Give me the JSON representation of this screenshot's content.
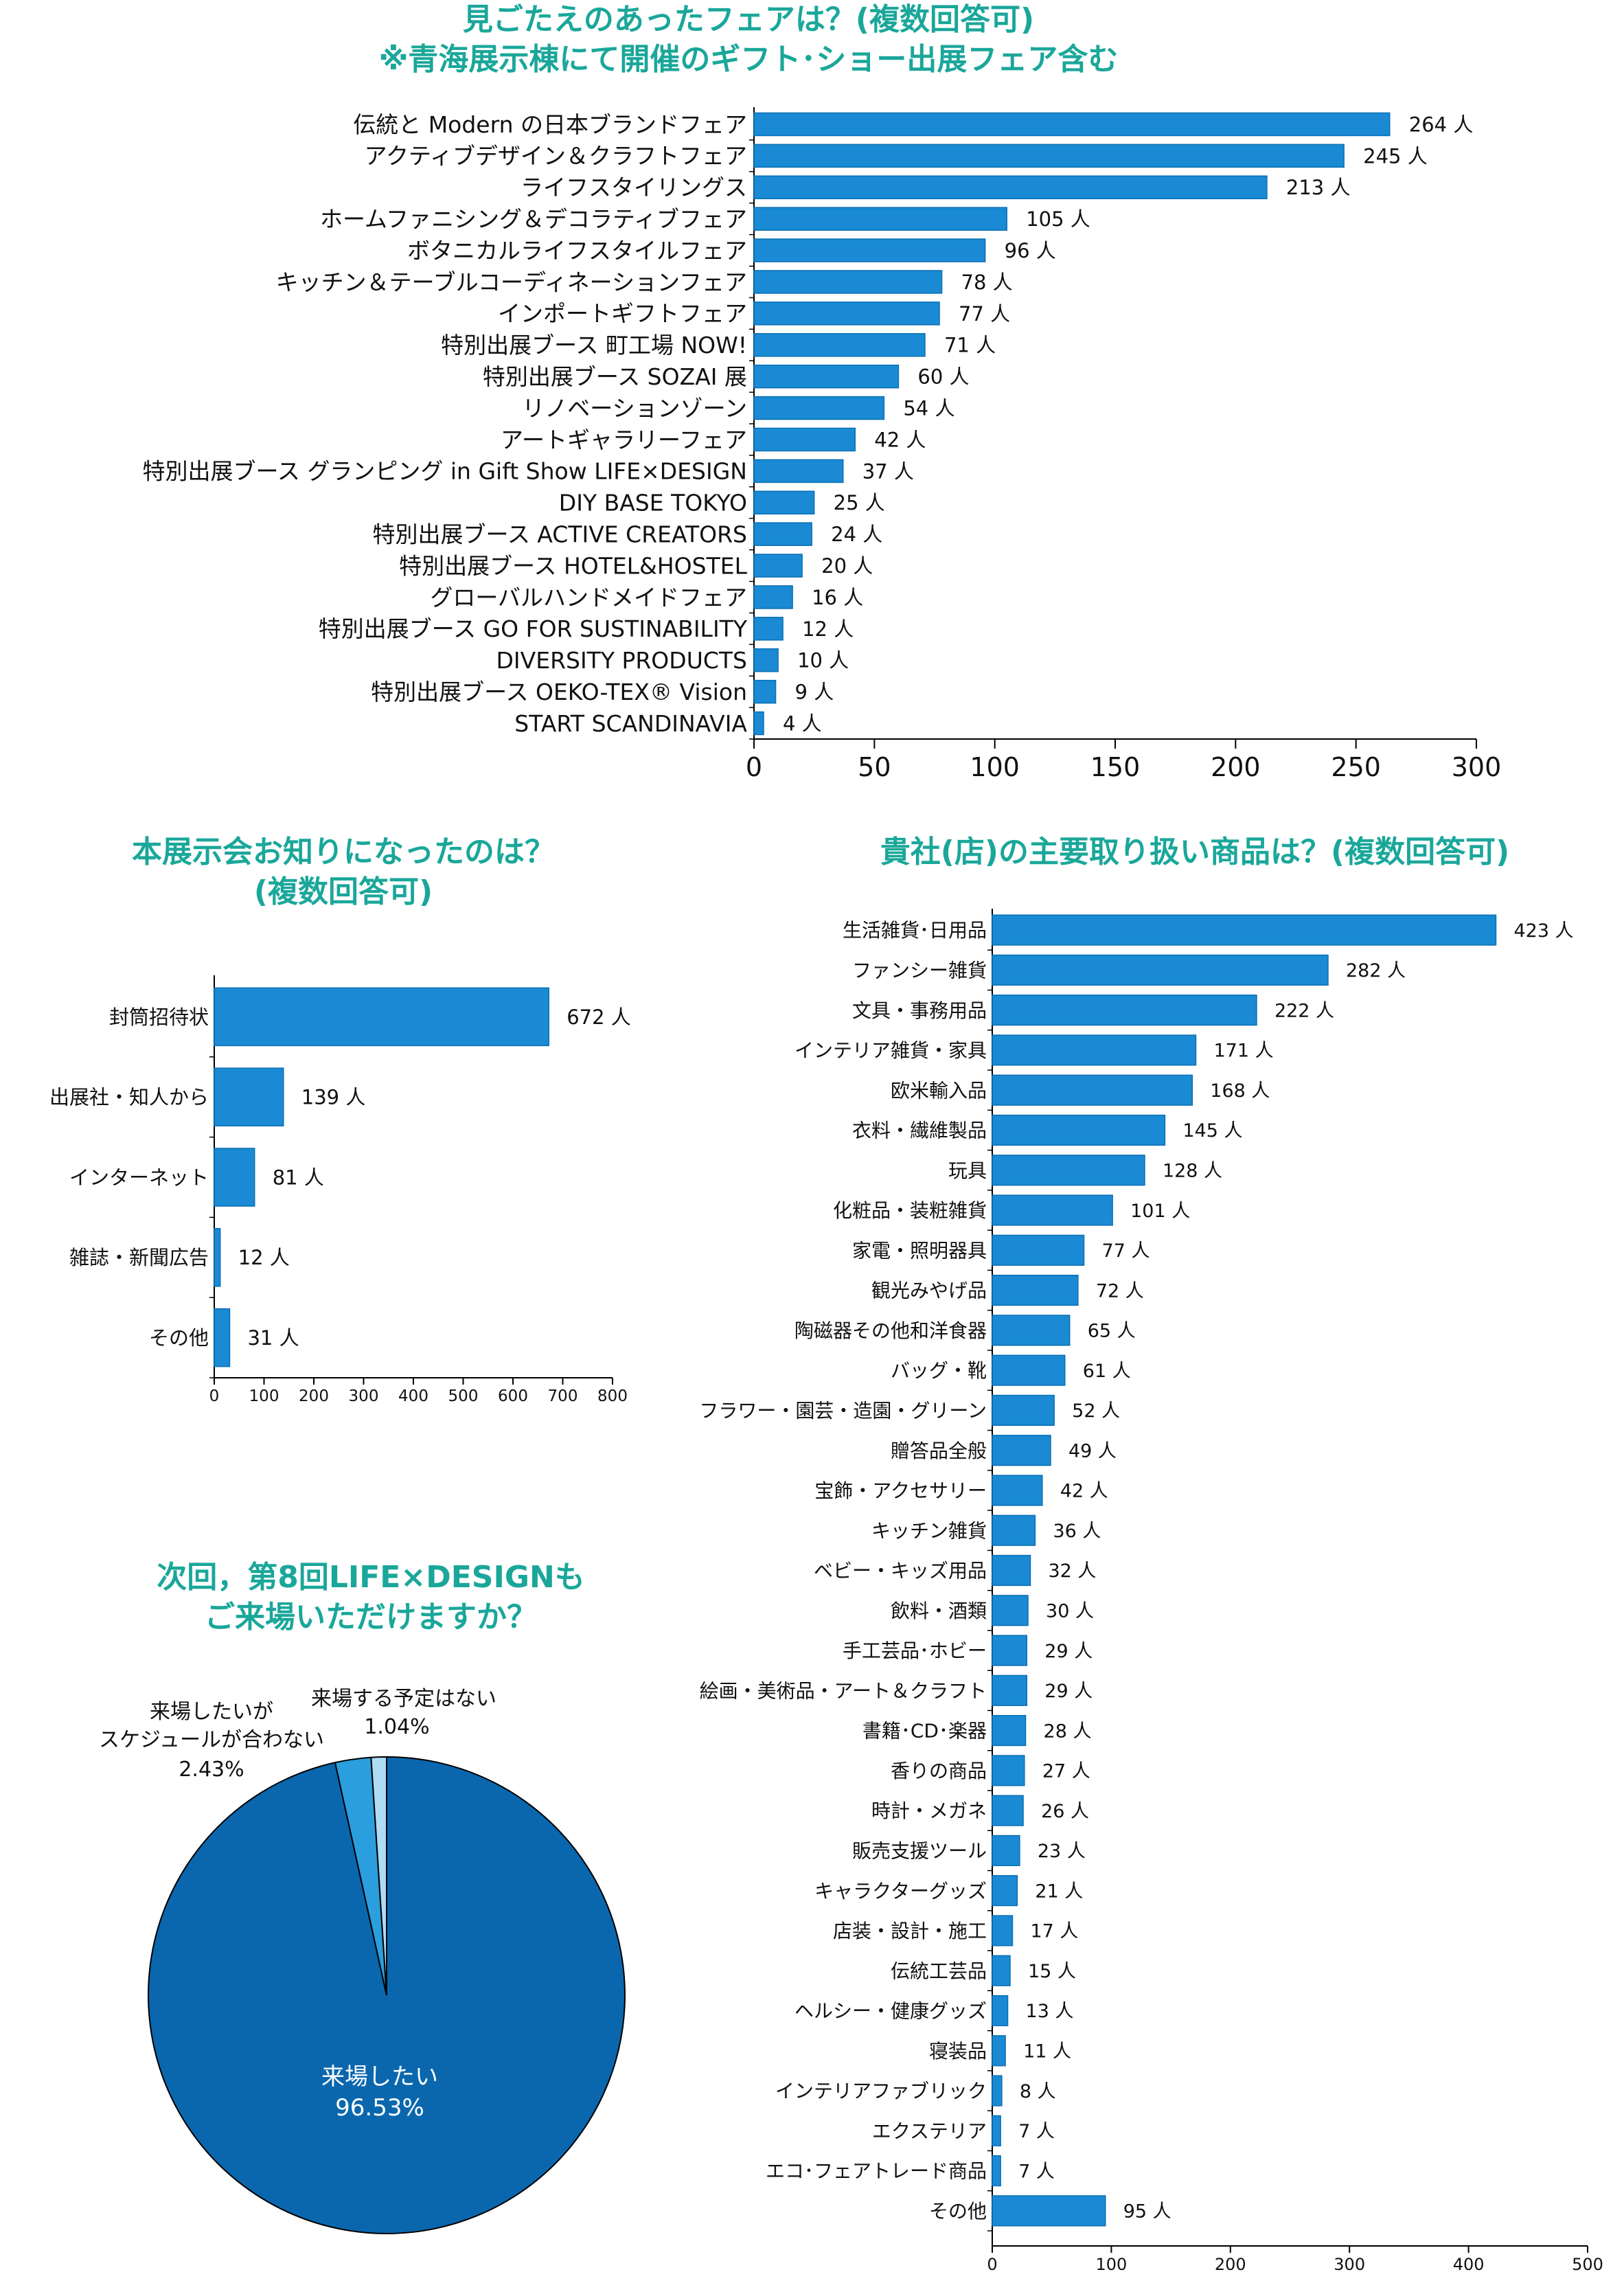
{
  "colors": {
    "bar": "#1a8ad4",
    "bar_dark": "#0a6fb4",
    "title": "#1aa79a",
    "pie_main": "#0a67ae",
    "pie_second": "#2b9edd",
    "pie_third": "#aedcf5"
  },
  "unit": "人",
  "chart_data": [
    {
      "type": "bar",
      "orientation": "horizontal",
      "title": "見ごたえのあったフェアは？(複数回答可)",
      "subtitle": "※青海展示棟にて開催のギフト･ショー出展フェア含む",
      "categories": [
        "伝統と Modern の日本ブランドフェア",
        "アクティブデザイン＆クラフトフェア",
        "ライフスタイリングス",
        "ホームファニシング＆デコラティブフェア",
        "ボタニカルライフスタイルフェア",
        "キッチン＆テーブルコーディネーションフェア",
        "インポートギフトフェア",
        "特別出展ブース 町工場 NOW!",
        "特別出展ブース SOZAI 展",
        "リノベーションゾーン",
        "アートギャラリーフェア",
        "特別出展ブース グランピング in Gift Show LIFE×DESIGN",
        "DIY BASE TOKYO",
        "特別出展ブース ACTIVE CREATORS",
        "特別出展ブース HOTEL&HOSTEL",
        "グローバルハンドメイドフェア",
        "特別出展ブース GO FOR SUSTINABILITY",
        "DIVERSITY PRODUCTS",
        "特別出展ブース OEKO-TEX® Vision",
        "START SCANDINAVIA"
      ],
      "values": [
        264,
        245,
        213,
        105,
        96,
        78,
        77,
        71,
        60,
        54,
        42,
        37,
        25,
        24,
        20,
        16,
        12,
        10,
        9,
        4
      ],
      "xlim": [
        0,
        300
      ],
      "xticks": [
        "0",
        "50",
        "100",
        "150",
        "200",
        "250",
        "300"
      ]
    },
    {
      "type": "bar",
      "orientation": "horizontal",
      "title": "本展示会お知りになったのは？",
      "subtitle": "(複数回答可)",
      "categories": [
        "封筒招待状",
        "出展社・知人から",
        "インターネット",
        "雑誌・新聞広告",
        "その他"
      ],
      "values": [
        672,
        139,
        81,
        12,
        31
      ],
      "xlim": [
        0,
        800
      ],
      "xticks": [
        "0",
        "100",
        "200",
        "300",
        "400",
        "500",
        "600",
        "700",
        "800"
      ]
    },
    {
      "type": "pie",
      "title": "次回，第8回LIFE×DESIGNも",
      "subtitle": "ご来場いただけますか？",
      "slices": [
        {
          "lines": [
            "来場したい"
          ],
          "pct": "96.53%",
          "value": 96.53
        },
        {
          "lines": [
            "来場したいが",
            "スケジュールが合わない"
          ],
          "pct": "2.43%",
          "value": 2.43
        },
        {
          "lines": [
            "来場する予定はない"
          ],
          "pct": "1.04%",
          "value": 1.04
        }
      ]
    },
    {
      "type": "bar",
      "orientation": "horizontal",
      "title": "貴社(店)の主要取り扱い商品は？(複数回答可)",
      "categories": [
        "生活雑貨･日用品",
        "ファンシー雑貨",
        "文具・事務用品",
        "インテリア雑貨・家具",
        "欧米輸入品",
        "衣料・繊維製品",
        "玩具",
        "化粧品・装粧雑貨",
        "家電・照明器具",
        "観光みやげ品",
        "陶磁器その他和洋食器",
        "バッグ・靴",
        "フラワー・園芸・造園・グリーン",
        "贈答品全般",
        "宝飾・アクセサリー",
        "キッチン雑貨",
        "ベビー・キッズ用品",
        "飲料・酒類",
        "手工芸品･ホビー",
        "絵画・美術品・アート＆クラフト",
        "書籍･CD･楽器",
        "香りの商品",
        "時計・メガネ",
        "販売支援ツール",
        "キャラクターグッズ",
        "店装・設計・施工",
        "伝統工芸品",
        "ヘルシー・健康グッズ",
        "寝装品",
        "インテリアファブリック",
        "エクステリア",
        "エコ･フェアトレード商品",
        "その他"
      ],
      "values": [
        423,
        282,
        222,
        171,
        168,
        145,
        128,
        101,
        77,
        72,
        65,
        61,
        52,
        49,
        42,
        36,
        32,
        30,
        29,
        29,
        28,
        27,
        26,
        23,
        21,
        17,
        15,
        13,
        11,
        8,
        7,
        7,
        95
      ],
      "xlim": [
        0,
        500
      ],
      "xticks": [
        "0",
        "100",
        "200",
        "300",
        "400",
        "500"
      ]
    }
  ]
}
